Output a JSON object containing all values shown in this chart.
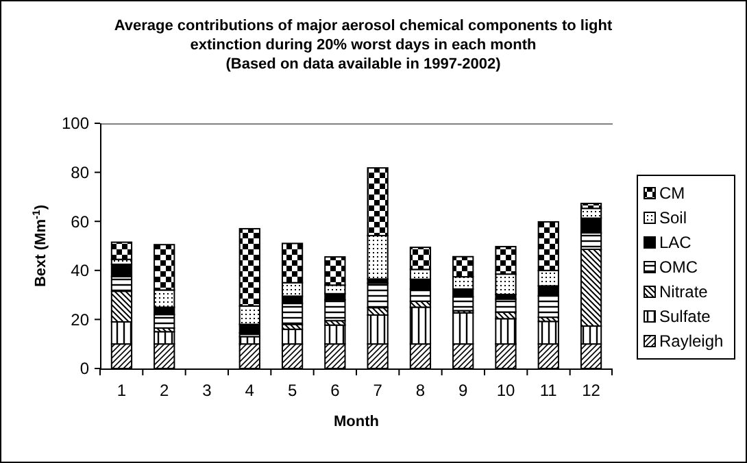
{
  "chart_data": {
    "type": "bar",
    "stacked": true,
    "title": "Average contributions of major aerosol chemical components to light\nextinction during 20% worst days in each month\n(Based on data available in 1997-2002)",
    "xlabel": "Month",
    "ylabel": "Bext (Mm$^{-1}$)",
    "categories": [
      "1",
      "2",
      "3",
      "4",
      "5",
      "6",
      "7",
      "8",
      "9",
      "10",
      "11",
      "12"
    ],
    "ylim": [
      0,
      100
    ],
    "yticks": [
      0,
      20,
      40,
      60,
      80,
      100
    ],
    "legend": "right",
    "grid": false,
    "series": [
      {
        "name": "Rayleigh",
        "color": "#000000",
        "values": [
          10,
          10,
          null,
          10,
          10,
          10,
          10,
          10,
          10,
          10,
          10,
          10
        ]
      },
      {
        "name": "Sulfate",
        "color": "#000000",
        "values": [
          9,
          5,
          null,
          3,
          6,
          7.7,
          11.8,
          15,
          12.7,
          10.3,
          9.2,
          7.3
        ]
      },
      {
        "name": "Nitrate",
        "color": "#000000",
        "values": [
          12.5,
          1.5,
          null,
          null,
          2,
          1.8,
          3,
          2.4,
          0.9,
          2.7,
          1.7,
          31.3
        ]
      },
      {
        "name": "OMC",
        "color": "#000000",
        "values": [
          6,
          5.5,
          null,
          1.5,
          8.5,
          8.5,
          10,
          5,
          5.6,
          5.3,
          8.7,
          6.7
        ]
      },
      {
        "name": "LAC",
        "color": "#000000",
        "values": [
          5,
          3,
          null,
          3.5,
          3,
          2.5,
          1.7,
          4,
          3.2,
          1.9,
          4.1,
          6
        ]
      },
      {
        "name": "Soil",
        "color": "#000000",
        "values": [
          2,
          7,
          null,
          7.5,
          5.5,
          3.5,
          17.7,
          4,
          5,
          8.3,
          6.3,
          4
        ]
      },
      {
        "name": "CM",
        "color": "#000000",
        "values": [
          7,
          18.5,
          null,
          31.5,
          16,
          11.5,
          27.6,
          9,
          8.2,
          11.2,
          19.8,
          2
        ]
      }
    ]
  }
}
